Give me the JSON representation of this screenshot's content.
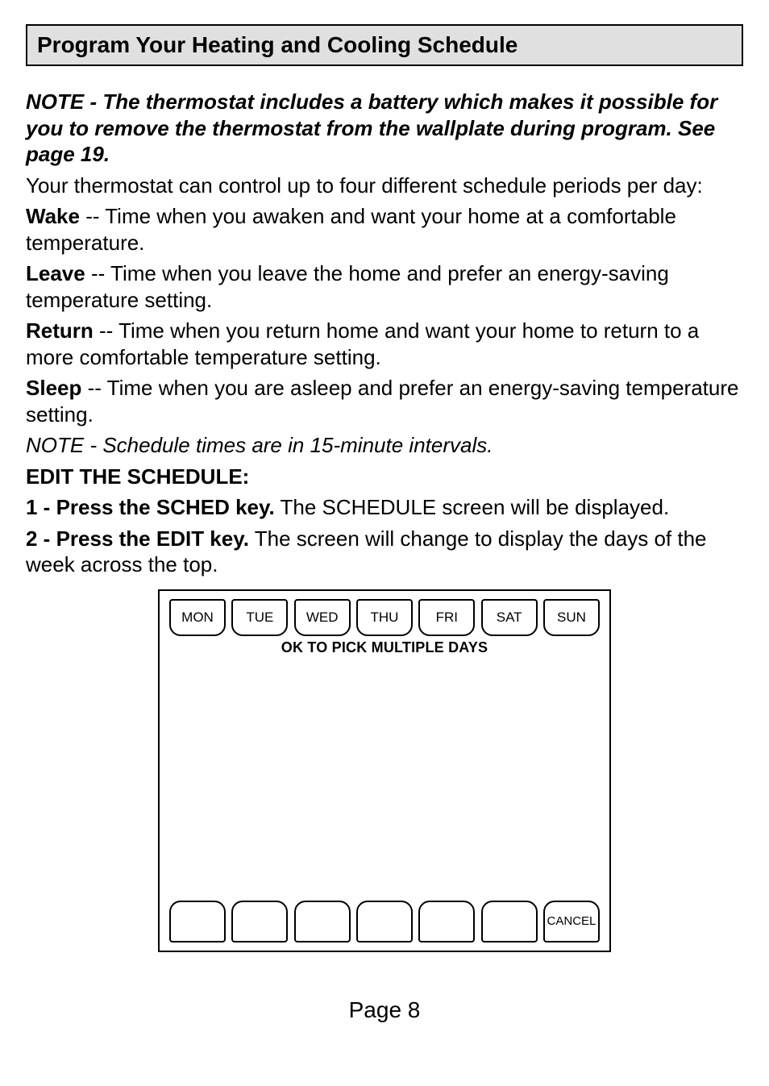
{
  "header": {
    "title": "Program Your Heating and Cooling Schedule"
  },
  "note": {
    "line1": "NOTE - The thermostat includes a battery which makes it possible for you to remove the thermostat from the wall­plate during program. See page 19."
  },
  "body": {
    "intro": "Your thermostat can control up to four different schedule peri­ods per day:",
    "wake_label": "Wake",
    "wake_text": " -- Time when you awaken and want your home at a comfortable temperature.",
    "leave_label": "Leave",
    "leave_text": " -- Time when you leave the home and prefer an ener­gy-saving temperature setting.",
    "return_label": "Return",
    "return_text": " -- Time when you return home and want your home to return to a more comfortable temperature setting.",
    "sleep_label": "Sleep",
    "sleep_text": " -- Time when you are asleep and prefer an energy-saving temperature setting.",
    "schedule_note": "NOTE - Schedule times are in 15-minute intervals.",
    "edit_heading": "EDIT THE SCHEDULE:",
    "step1_bold": "1 - Press the SCHED key.",
    "step1_rest": " The SCHEDULE screen will be displayed.",
    "step2_bold": "2 - Press the EDIT key.",
    "step2_rest": " The screen will change to display the days of the week across the top."
  },
  "screen": {
    "days": [
      "MON",
      "TUE",
      "WED",
      "THU",
      "FRI",
      "SAT",
      "SUN"
    ],
    "hint": "OK TO PICK MULTIPLE DAYS",
    "cancel": "CANCEL",
    "colors": {
      "border": "#000000",
      "background": "#ffffff"
    }
  },
  "footer": {
    "page": "Page 8"
  }
}
